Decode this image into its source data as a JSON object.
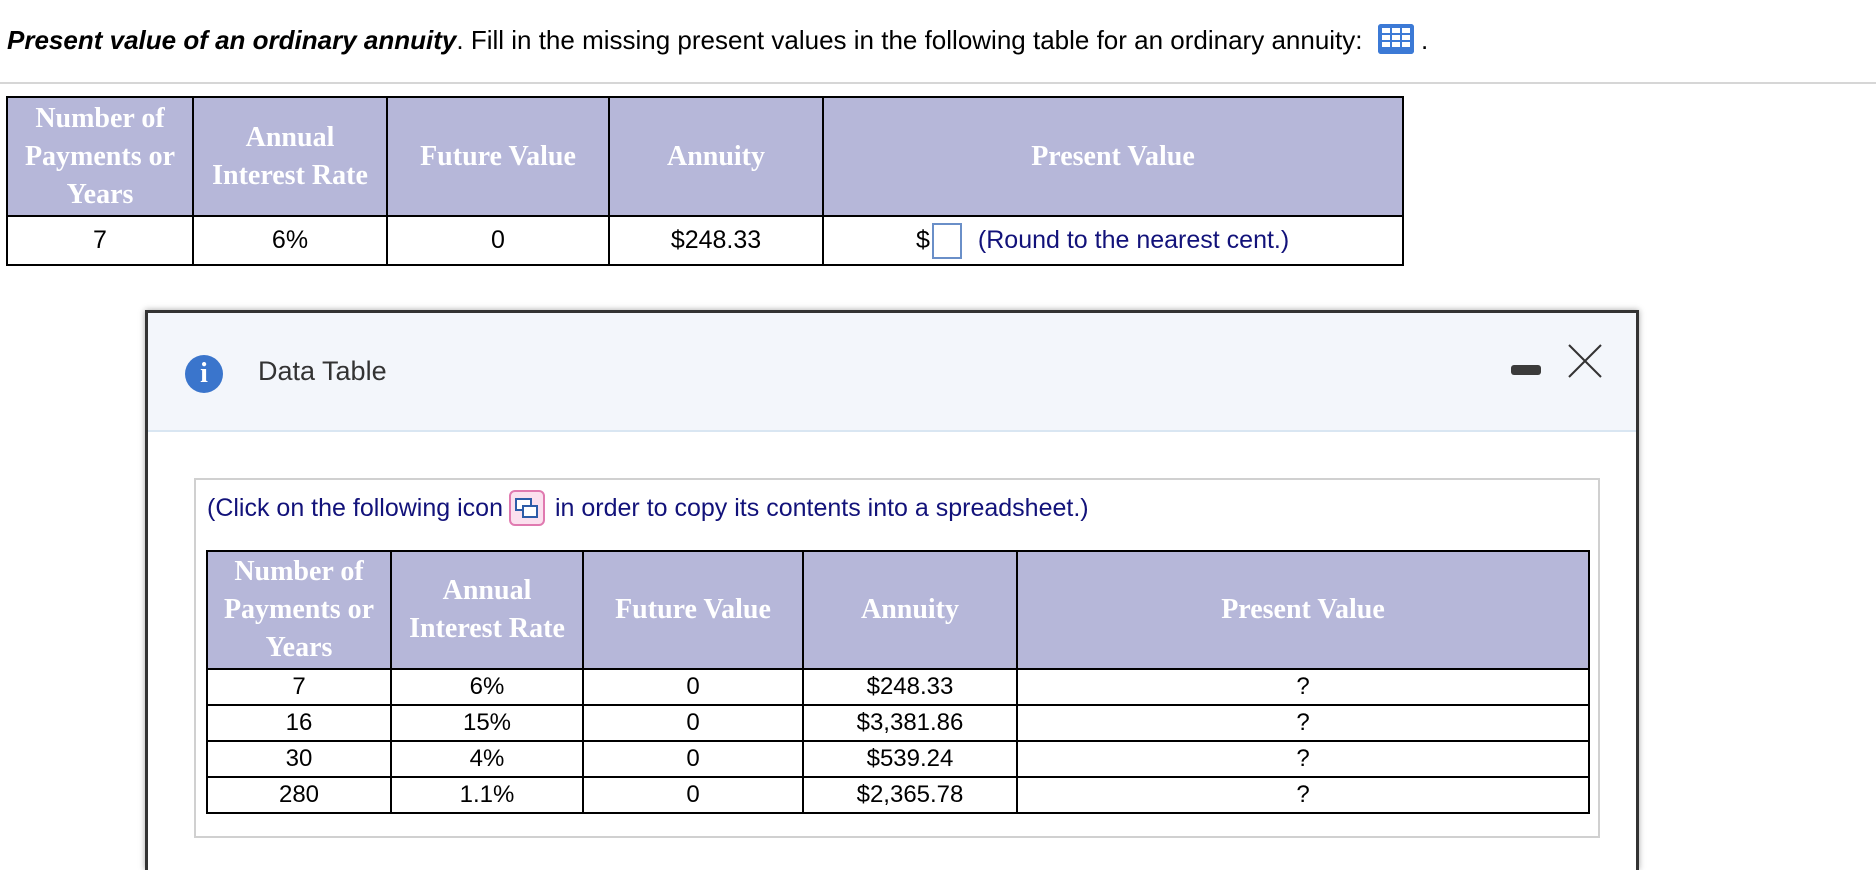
{
  "question": {
    "title": "Present value of an ordinary annuity",
    "title_suffix": ".",
    "text": "Fill in the missing present values in the following table for an ordinary annuity:",
    "trailing": ".",
    "data_icon": "table-grid-icon"
  },
  "columns": [
    "Number of Payments or Years",
    "Annual Interest Rate",
    "Future Value",
    "Annuity",
    "Present Value"
  ],
  "main_row": {
    "years": "7",
    "rate": "6%",
    "future_value": "0",
    "annuity": "$248.33",
    "pv_prefix": "$",
    "pv_value": "",
    "hint": "(Round to the nearest cent.)"
  },
  "dialog": {
    "title": "Data Table",
    "info_icon": "info-icon",
    "minimize_icon": "minimize-icon",
    "close_icon": "close-icon",
    "copy_before": "(Click on the following icon",
    "copy_after": "in order to copy its contents into a spreadsheet.)",
    "rows": [
      {
        "years": "7",
        "rate": "6%",
        "future_value": "0",
        "annuity": "$248.33",
        "present_value": "?"
      },
      {
        "years": "16",
        "rate": "15%",
        "future_value": "0",
        "annuity": "$3,381.86",
        "present_value": "?"
      },
      {
        "years": "30",
        "rate": "4%",
        "future_value": "0",
        "annuity": "$539.24",
        "present_value": "?"
      },
      {
        "years": "280",
        "rate": "1.1%",
        "future_value": "0",
        "annuity": "$2,365.78",
        "present_value": "?"
      }
    ]
  },
  "colors": {
    "header_bg": "#b6b7d9",
    "link_text": "#12127a",
    "info_blue": "#3a75cc"
  }
}
